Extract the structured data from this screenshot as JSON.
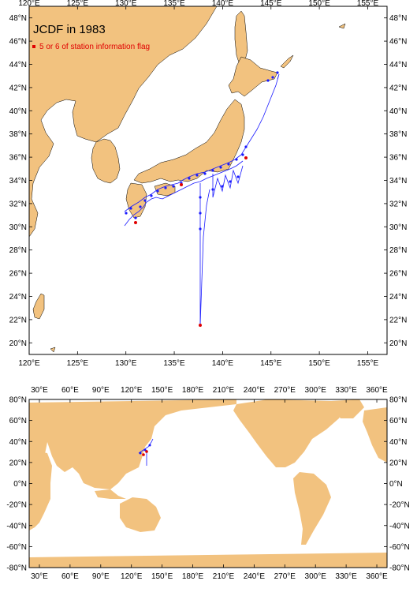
{
  "maps": {
    "top": {
      "title": "JCDF in 1983",
      "legend_label": "5 or 6 of station information flag",
      "lon_range": [
        120,
        157
      ],
      "lat_range": [
        19,
        49
      ],
      "lon_ticks": [
        "120°E",
        "125°E",
        "130°E",
        "135°E",
        "140°E",
        "145°E",
        "150°E",
        "155°E"
      ],
      "lat_ticks": [
        "20°N",
        "22°N",
        "24°N",
        "26°N",
        "28°N",
        "30°N",
        "32°N",
        "34°N",
        "36°N",
        "38°N",
        "40°N",
        "42°N",
        "44°N",
        "46°N",
        "48°N"
      ]
    },
    "bottom": {
      "lon_range": [
        20,
        370
      ],
      "lat_range": [
        -80,
        80
      ],
      "lon_ticks": [
        "30°E",
        "60°E",
        "90°E",
        "120°E",
        "150°E",
        "180°E",
        "210°E",
        "240°E",
        "270°E",
        "300°E",
        "330°E",
        "360°E"
      ],
      "lat_ticks": [
        "80°N",
        "60°N",
        "40°N",
        "20°N",
        "0°N",
        "-20°N",
        "-40°N",
        "-60°N",
        "-80°N"
      ]
    }
  },
  "colors": {
    "land": "#f2c27f",
    "ocean": "#ffffff",
    "station": "#1a1aff",
    "flagged": "#e00000"
  }
}
